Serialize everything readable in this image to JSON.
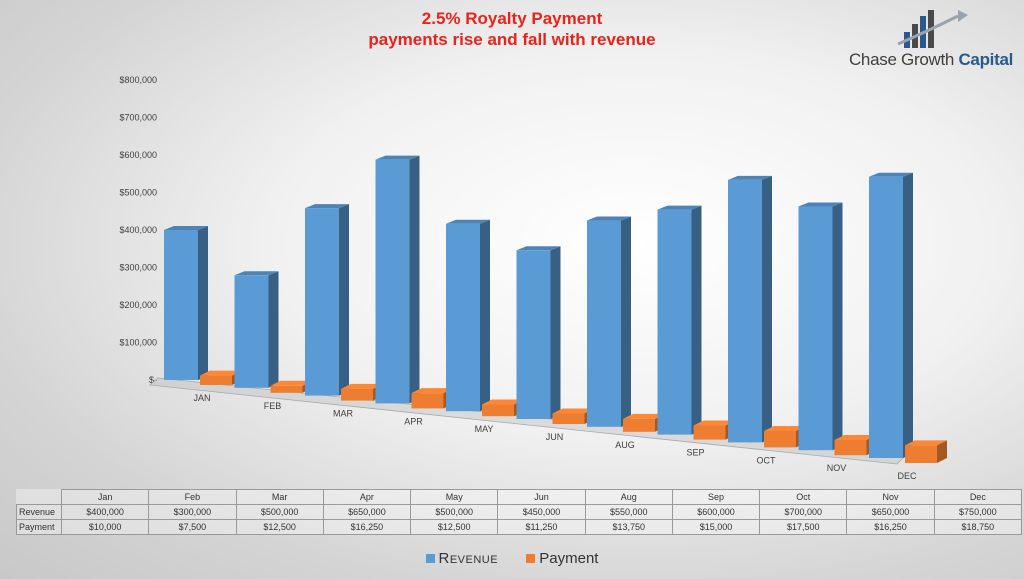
{
  "header": {
    "title_line1": "2.5% Royalty Payment",
    "title_line2": "payments rise and fall with revenue"
  },
  "logo": {
    "name_part1": "Chase ",
    "name_part2": "Growth ",
    "name_part3": "Capital",
    "icon": "bar-chart-arrow-logo-icon"
  },
  "colors": {
    "revenue": "#5b9bd5",
    "payment": "#ed7d31",
    "title": "#e8231c"
  },
  "chart_data": {
    "type": "bar",
    "title": "2.5% Royalty Payment",
    "subtitle": "payments rise and fall with revenue",
    "categories": [
      "JAN",
      "FEB",
      "MAR",
      "APR",
      "MAY",
      "JUN",
      "AUG",
      "SEP",
      "OCT",
      "NOV",
      "DEC"
    ],
    "table_categories": [
      "Jan",
      "Feb",
      "Mar",
      "Apr",
      "May",
      "Jun",
      "Aug",
      "Sep",
      "Oct",
      "Nov",
      "Dec"
    ],
    "series": [
      {
        "name": "Revenue",
        "values": [
          400000,
          300000,
          500000,
          650000,
          500000,
          450000,
          550000,
          600000,
          700000,
          650000,
          750000
        ],
        "labels": [
          "$400,000",
          "$300,000",
          "$500,000",
          "$650,000",
          "$500,000",
          "$450,000",
          "$550,000",
          "$600,000",
          "$700,000",
          "$650,000",
          "$750,000"
        ]
      },
      {
        "name": "Payment",
        "values": [
          10000,
          7500,
          12500,
          16250,
          12500,
          11250,
          13750,
          15000,
          17500,
          16250,
          18750
        ],
        "labels": [
          "$10,000",
          "$7,500",
          "$12,500",
          "$16,250",
          "$12,500",
          "$11,250",
          "$13,750",
          "$15,000",
          "$17,500",
          "$16,250",
          "$18,750"
        ]
      }
    ],
    "ylim": [
      0,
      800000
    ],
    "yticks": [
      0,
      100000,
      200000,
      300000,
      400000,
      500000,
      600000,
      700000,
      800000
    ],
    "ytick_labels": [
      "$-",
      "$100,000",
      "$200,000",
      "$300,000",
      "$400,000",
      "$500,000",
      "$600,000",
      "$700,000",
      "$800,000"
    ],
    "legend_labels": [
      "Revenue",
      "Payment"
    ],
    "legend_position": "bottom",
    "grid": false,
    "style": "3d-perspective"
  }
}
